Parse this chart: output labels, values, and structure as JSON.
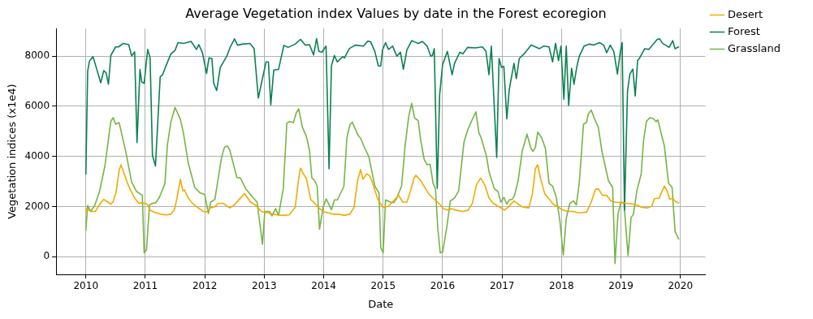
{
  "chart_data": {
    "type": "line",
    "title": "Average Vegetation index Values by date in the Forest ecoregion",
    "xlabel": "Date",
    "ylabel": "Vegetation indices (x1e4)",
    "xlim": [
      2009.5,
      2020.42
    ],
    "xticks": [
      2010,
      2011,
      2012,
      2013,
      2014,
      2015,
      2016,
      2017,
      2018,
      2019,
      2020
    ],
    "ylim": [
      -700,
      9100
    ],
    "yticks": [
      0,
      2000,
      4000,
      6000,
      8000
    ],
    "grid": true,
    "legend": "top right",
    "marker": "none",
    "line_style": "solid",
    "series": [
      {
        "name": "Desert",
        "color": "#f0ab00",
        "x": [
          2010.0,
          2010.01,
          2010.08,
          2010.16,
          2010.22,
          2010.3,
          2010.34,
          2010.42,
          2010.46,
          2010.51,
          2010.56,
          2010.59,
          2010.63,
          2010.7,
          2010.75,
          2010.82,
          2010.89,
          2010.94,
          2011.03,
          2011.08,
          2011.17,
          2011.26,
          2011.35,
          2011.43,
          2011.49,
          2011.52,
          2011.56,
          2011.59,
          2011.63,
          2011.66,
          2011.71,
          2011.78,
          2011.88,
          2011.97,
          2012.03,
          2012.09,
          2012.16,
          2012.23,
          2012.31,
          2012.42,
          2012.49,
          2012.58,
          2012.67,
          2012.77,
          2012.86,
          2012.95,
          2013.05,
          2013.14,
          2013.23,
          2013.33,
          2013.42,
          2013.52,
          2013.58,
          2013.61,
          2013.66,
          2013.71,
          2013.78,
          2013.85,
          2013.92,
          2013.99,
          2014.06,
          2014.15,
          2014.25,
          2014.34,
          2014.44,
          2014.51,
          2014.57,
          2014.62,
          2014.66,
          2014.72,
          2014.77,
          2014.81,
          2014.91,
          2015.0,
          2015.09,
          2015.19,
          2015.26,
          2015.33,
          2015.4,
          2015.47,
          2015.52,
          2015.55,
          2015.63,
          2015.7,
          2015.77,
          2015.85,
          2015.94,
          2016.01,
          2016.1,
          2016.15,
          2016.22,
          2016.34,
          2016.43,
          2016.5,
          2016.57,
          2016.64,
          2016.71,
          2016.78,
          2016.85,
          2016.97,
          2017.04,
          2017.11,
          2017.2,
          2017.27,
          2017.34,
          2017.45,
          2017.51,
          2017.56,
          2017.6,
          2017.65,
          2017.72,
          2017.79,
          2017.86,
          2017.95,
          2018.01,
          2018.1,
          2018.2,
          2018.27,
          2018.34,
          2018.42,
          2018.5,
          2018.57,
          2018.62,
          2018.69,
          2018.76,
          2018.83,
          2018.9,
          2019.0,
          2019.09,
          2019.21,
          2019.28,
          2019.35,
          2019.45,
          2019.52,
          2019.56,
          2019.64,
          2019.68,
          2019.73,
          2019.78,
          2019.82,
          2019.87,
          2019.92,
          2019.97
        ],
        "values": [
          1810,
          1920,
          1810,
          1810,
          2050,
          2290,
          2230,
          2100,
          2200,
          2610,
          3460,
          3670,
          3400,
          2930,
          2660,
          2340,
          2130,
          2160,
          2100,
          1860,
          1760,
          1700,
          1670,
          1700,
          1880,
          2200,
          2710,
          3090,
          2630,
          2660,
          2390,
          2160,
          1970,
          1810,
          1790,
          1950,
          1990,
          2130,
          2130,
          1950,
          2050,
          2290,
          2520,
          2180,
          2050,
          1810,
          1760,
          1700,
          1670,
          1650,
          1670,
          1970,
          3140,
          3540,
          3300,
          3120,
          2290,
          2130,
          1950,
          1810,
          1760,
          1700,
          1700,
          1650,
          1700,
          1970,
          3030,
          3480,
          3090,
          3300,
          3250,
          3030,
          2290,
          1970,
          2020,
          2270,
          2450,
          2180,
          2180,
          2710,
          3140,
          3250,
          3050,
          2770,
          2500,
          2310,
          2130,
          1920,
          1860,
          1920,
          1860,
          1810,
          1860,
          2130,
          2870,
          3140,
          2870,
          2340,
          2130,
          1970,
          1860,
          1990,
          2230,
          2100,
          1990,
          1950,
          2500,
          3510,
          3670,
          3090,
          2500,
          2310,
          2100,
          1970,
          1880,
          1810,
          1810,
          1760,
          1760,
          1780,
          2180,
          2690,
          2710,
          2450,
          2450,
          2230,
          2180,
          2160,
          2130,
          2100,
          2050,
          1970,
          1950,
          2020,
          2310,
          2340,
          2550,
          2820,
          2610,
          2290,
          2340,
          2200,
          2150
        ]
      },
      {
        "name": "Forest",
        "color": "#0b8050",
        "x": [
          2010.0,
          2010.03,
          2010.06,
          2010.12,
          2010.18,
          2010.25,
          2010.3,
          2010.34,
          2010.38,
          2010.42,
          2010.5,
          2010.55,
          2010.63,
          2010.72,
          2010.77,
          2010.82,
          2010.86,
          2010.91,
          2010.94,
          2010.98,
          2011.04,
          2011.08,
          2011.12,
          2011.17,
          2011.25,
          2011.29,
          2011.35,
          2011.43,
          2011.5,
          2011.55,
          2011.64,
          2011.77,
          2011.86,
          2011.9,
          2011.96,
          2012.03,
          2012.07,
          2012.12,
          2012.15,
          2012.2,
          2012.26,
          2012.3,
          2012.37,
          2012.43,
          2012.5,
          2012.55,
          2012.63,
          2012.76,
          2012.83,
          2012.9,
          2013.03,
          2013.07,
          2013.11,
          2013.16,
          2013.24,
          2013.33,
          2013.4,
          2013.52,
          2013.61,
          2013.69,
          2013.76,
          2013.83,
          2013.88,
          2013.92,
          2013.97,
          2014.04,
          2014.09,
          2014.13,
          2014.18,
          2014.23,
          2014.32,
          2014.35,
          2014.43,
          2014.53,
          2014.67,
          2014.74,
          2014.79,
          2014.86,
          2014.92,
          2014.96,
          2014.99,
          2015.04,
          2015.09,
          2015.16,
          2015.23,
          2015.29,
          2015.34,
          2015.4,
          2015.48,
          2015.59,
          2015.66,
          2015.74,
          2015.8,
          2015.83,
          2015.86,
          2015.91,
          2015.95,
          2016.0,
          2016.08,
          2016.16,
          2016.2,
          2016.29,
          2016.34,
          2016.42,
          2016.55,
          2016.67,
          2016.73,
          2016.78,
          2016.82,
          2016.91,
          2016.95,
          2016.99,
          2017.03,
          2017.08,
          2017.12,
          2017.2,
          2017.24,
          2017.29,
          2017.37,
          2017.49,
          2017.63,
          2017.7,
          2017.79,
          2017.85,
          2017.9,
          2017.95,
          2017.99,
          2018.04,
          2018.08,
          2018.12,
          2018.17,
          2018.21,
          2018.26,
          2018.3,
          2018.38,
          2018.47,
          2018.54,
          2018.58,
          2018.64,
          2018.71,
          2018.76,
          2018.82,
          2018.88,
          2018.94,
          2018.99,
          2019.02,
          2019.06,
          2019.11,
          2019.15,
          2019.2,
          2019.24,
          2019.28,
          2019.32,
          2019.4,
          2019.47,
          2019.53,
          2019.61,
          2019.65,
          2019.7,
          2019.75,
          2019.81,
          2019.87,
          2019.91,
          2019.97
        ],
        "values": [
          3300,
          7400,
          7800,
          7980,
          7500,
          6940,
          7420,
          7340,
          6880,
          8030,
          8370,
          8370,
          8510,
          8460,
          8010,
          8170,
          4550,
          7470,
          6970,
          6920,
          8270,
          7930,
          4040,
          3620,
          7180,
          7260,
          7630,
          8090,
          8230,
          8540,
          8510,
          8590,
          8270,
          8460,
          8140,
          7310,
          7930,
          7910,
          6920,
          6630,
          7550,
          7710,
          8000,
          8370,
          8690,
          8440,
          8480,
          8510,
          8300,
          6330,
          7770,
          7770,
          6060,
          7450,
          7470,
          8430,
          8350,
          8480,
          8670,
          8440,
          8460,
          8050,
          8700,
          8190,
          8160,
          8400,
          3510,
          7610,
          8030,
          7770,
          7980,
          7930,
          8300,
          8440,
          8400,
          8600,
          8570,
          8190,
          7610,
          7610,
          8250,
          8540,
          8270,
          8400,
          8000,
          8160,
          7480,
          8250,
          8620,
          8510,
          8590,
          8400,
          8000,
          8030,
          8300,
          2730,
          6440,
          7660,
          8190,
          7260,
          7710,
          8160,
          8090,
          8350,
          8330,
          8370,
          8190,
          7260,
          8400,
          3960,
          7910,
          7550,
          7590,
          5500,
          6650,
          7710,
          7100,
          7910,
          8090,
          8440,
          8300,
          8400,
          8370,
          7770,
          8510,
          7820,
          8400,
          6280,
          8400,
          6030,
          7520,
          6880,
          7610,
          8000,
          8400,
          8480,
          8440,
          8480,
          8540,
          8440,
          8140,
          8440,
          8190,
          7290,
          8190,
          8540,
          1860,
          6600,
          7290,
          7480,
          6410,
          7820,
          7950,
          8300,
          8270,
          8440,
          8670,
          8690,
          8510,
          8440,
          8350,
          8620,
          8300,
          8370
        ]
      },
      {
        "name": "Grassland",
        "color": "#74b544",
        "x": [
          2010.0,
          2010.03,
          2010.08,
          2010.15,
          2010.23,
          2010.32,
          2010.42,
          2010.46,
          2010.5,
          2010.56,
          2010.67,
          2010.77,
          2010.85,
          2010.95,
          2010.98,
          2011.02,
          2011.07,
          2011.12,
          2011.18,
          2011.24,
          2011.33,
          2011.37,
          2011.43,
          2011.5,
          2011.59,
          2011.64,
          2011.72,
          2011.83,
          2011.92,
          2012.0,
          2012.06,
          2012.1,
          2012.17,
          2012.28,
          2012.33,
          2012.38,
          2012.42,
          2012.54,
          2012.6,
          2012.69,
          2012.78,
          2012.88,
          2012.97,
          2013.01,
          2013.09,
          2013.13,
          2013.19,
          2013.24,
          2013.32,
          2013.38,
          2013.42,
          2013.49,
          2013.54,
          2013.58,
          2013.64,
          2013.71,
          2013.76,
          2013.8,
          2013.85,
          2013.89,
          2013.93,
          2013.99,
          2014.04,
          2014.08,
          2014.13,
          2014.18,
          2014.23,
          2014.3,
          2014.34,
          2014.39,
          2014.44,
          2014.48,
          2014.58,
          2014.62,
          2014.68,
          2014.76,
          2014.86,
          2014.93,
          2014.96,
          2015.0,
          2015.04,
          2015.12,
          2015.18,
          2015.23,
          2015.31,
          2015.37,
          2015.43,
          2015.48,
          2015.53,
          2015.59,
          2015.63,
          2015.69,
          2015.74,
          2015.79,
          2015.84,
          2015.88,
          2015.92,
          2015.96,
          2016.0,
          2016.07,
          2016.13,
          2016.2,
          2016.27,
          2016.36,
          2016.43,
          2016.5,
          2016.56,
          2016.61,
          2016.65,
          2016.74,
          2016.78,
          2016.87,
          2016.93,
          2016.98,
          2017.03,
          2017.08,
          2017.12,
          2017.17,
          2017.21,
          2017.27,
          2017.34,
          2017.42,
          2017.48,
          2017.52,
          2017.56,
          2017.6,
          2017.67,
          2017.73,
          2017.79,
          2017.85,
          2017.91,
          2017.97,
          2018.03,
          2018.08,
          2018.14,
          2018.2,
          2018.25,
          2018.3,
          2018.37,
          2018.42,
          2018.45,
          2018.5,
          2018.55,
          2018.62,
          2018.68,
          2018.79,
          2018.86,
          2018.9,
          2018.95,
          2019.0,
          2019.05,
          2019.12,
          2019.17,
          2019.21,
          2019.27,
          2019.34,
          2019.38,
          2019.43,
          2019.49,
          2019.55,
          2019.59,
          2019.62,
          2019.73,
          2019.8,
          2019.86,
          2019.91,
          2019.97
        ],
        "values": [
          1060,
          2050,
          1810,
          2050,
          2610,
          3620,
          5410,
          5550,
          5290,
          5350,
          4200,
          2980,
          2610,
          2450,
          160,
          290,
          2070,
          2130,
          2160,
          2390,
          2930,
          4440,
          5380,
          5960,
          5480,
          4950,
          3760,
          2770,
          2550,
          2480,
          1730,
          2180,
          2290,
          3940,
          4360,
          4420,
          4260,
          3160,
          3140,
          2710,
          2450,
          2180,
          500,
          1810,
          1810,
          1630,
          1920,
          1650,
          2710,
          5320,
          5390,
          5350,
          5750,
          5900,
          5180,
          4790,
          4260,
          3160,
          3030,
          2820,
          1100,
          1970,
          2310,
          2130,
          1880,
          2270,
          2270,
          2610,
          2820,
          4730,
          5270,
          5370,
          4840,
          4730,
          4390,
          3990,
          2820,
          2550,
          370,
          160,
          2270,
          2180,
          2160,
          2340,
          2820,
          4440,
          5590,
          6120,
          5530,
          5430,
          4680,
          3880,
          3670,
          3690,
          2930,
          2710,
          1120,
          160,
          180,
          1170,
          2230,
          2340,
          2630,
          4580,
          5110,
          5480,
          5780,
          4950,
          4730,
          3990,
          3400,
          2710,
          2610,
          2180,
          2370,
          2100,
          2270,
          2290,
          2450,
          3030,
          4220,
          4890,
          4360,
          4200,
          4360,
          4970,
          4730,
          4310,
          2930,
          2820,
          2390,
          1490,
          70,
          1540,
          2130,
          2230,
          2070,
          2980,
          5290,
          5350,
          5690,
          5850,
          5530,
          5160,
          4200,
          3030,
          2770,
          -270,
          1700,
          2180,
          2160,
          50,
          1560,
          1700,
          2660,
          3300,
          4630,
          5410,
          5550,
          5500,
          5390,
          5460,
          4420,
          2930,
          2770,
          1010,
          710
        ]
      }
    ]
  }
}
